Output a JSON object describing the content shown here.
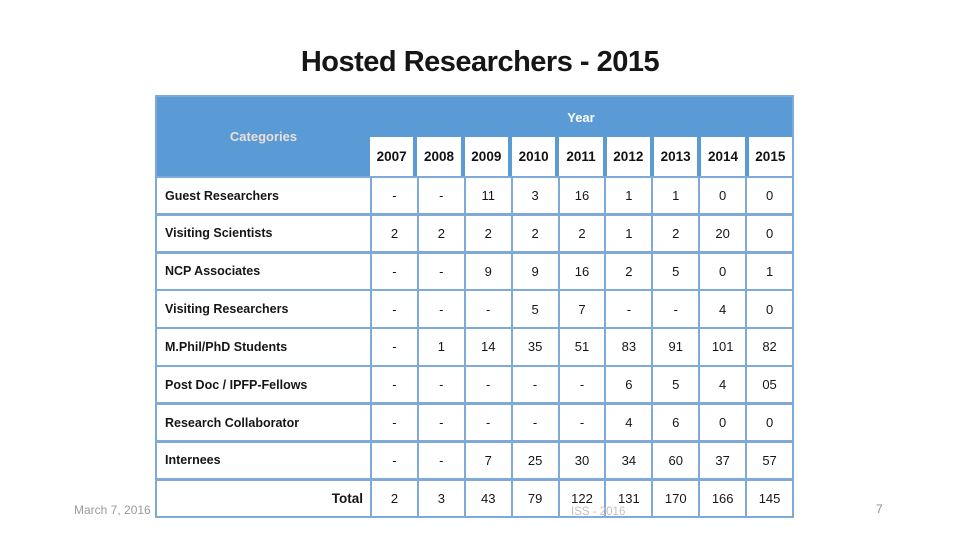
{
  "slide": {
    "title": "Hosted Researchers - 2015",
    "footer_date": "March 7, 2016",
    "page_number": "7",
    "watermark": "ISS - 2016"
  },
  "table": {
    "corner_label": "Categories",
    "year_group_label": "Year",
    "years": [
      "2007",
      "2008",
      "2009",
      "2010",
      "2011",
      "2012",
      "2013",
      "2014",
      "2015"
    ],
    "rows": [
      {
        "label": "Guest Researchers",
        "values": [
          "-",
          "-",
          "11",
          "3",
          "16",
          "1",
          "1",
          "0",
          "0"
        ]
      },
      {
        "label": "Visiting Scientists",
        "values": [
          "2",
          "2",
          "2",
          "2",
          "2",
          "1",
          "2",
          "20",
          "0"
        ]
      },
      {
        "label": "NCP Associates",
        "values": [
          "-",
          "-",
          "9",
          "9",
          "16",
          "2",
          "5",
          "0",
          "1"
        ]
      },
      {
        "label": "Visiting Researchers",
        "values": [
          "-",
          "-",
          "-",
          "5",
          "7",
          "-",
          "-",
          "4",
          "0"
        ]
      },
      {
        "label": "M.Phil/PhD Students",
        "values": [
          "-",
          "1",
          "14",
          "35",
          "51",
          "83",
          "91",
          "101",
          "82"
        ]
      },
      {
        "label": "Post Doc / IPFP-Fellows",
        "values": [
          "-",
          "-",
          "-",
          "-",
          "-",
          "6",
          "5",
          "4",
          "05"
        ]
      },
      {
        "label": "Research Collaborator",
        "values": [
          "-",
          "-",
          "-",
          "-",
          "-",
          "4",
          "6",
          "0",
          "0"
        ]
      },
      {
        "label": "Internees",
        "values": [
          "-",
          "-",
          "7",
          "25",
          "30",
          "34",
          "60",
          "37",
          "57"
        ]
      }
    ],
    "total_row": {
      "label": "Total",
      "values": [
        "2",
        "3",
        "43",
        "79",
        "122",
        "131",
        "170",
        "166",
        "145"
      ]
    }
  },
  "colors": {
    "header_blue": "#5b9bd5",
    "border_blue": "#7fa9d6",
    "title_text": "#161616",
    "corner_text": "#eadfd8",
    "year_label_text": "#ffffff",
    "footer_gray": "#9a9a9a",
    "watermark_gray": "#c4bfbf",
    "background": "#ffffff"
  }
}
